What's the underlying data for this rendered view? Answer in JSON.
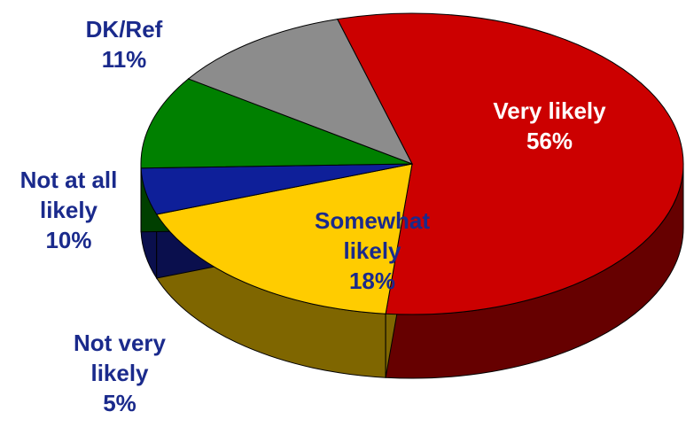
{
  "chart_data": {
    "type": "pie",
    "style": "3d",
    "slices": [
      {
        "label": "Very likely",
        "value": 56,
        "pct_label": "56%",
        "color": "#cc0000",
        "side_color": "#660000",
        "label_lines": [
          "Very likely",
          "56%"
        ]
      },
      {
        "label": "Somewhat likely",
        "value": 18,
        "pct_label": "18%",
        "color": "#ffcc00",
        "side_color": "#7f6600",
        "label_lines": [
          "Somewhat",
          "likely",
          "18%"
        ]
      },
      {
        "label": "Not very likely",
        "value": 5,
        "pct_label": "5%",
        "color": "#0e1f99",
        "side_color": "#0a0f4d",
        "label_lines": [
          "Not very",
          "likely",
          "5%"
        ]
      },
      {
        "label": "Not at all likely",
        "value": 10,
        "pct_label": "10%",
        "color": "#008000",
        "side_color": "#003f00",
        "label_lines": [
          "Not at all",
          "likely",
          "10%"
        ]
      },
      {
        "label": "DK/Ref",
        "value": 11,
        "pct_label": "11%",
        "color": "#8c8c8c",
        "side_color": "#464646",
        "label_lines": [
          "DK/Ref",
          "11%"
        ]
      }
    ],
    "legend": "none",
    "label_color": "#1a2a8c"
  }
}
